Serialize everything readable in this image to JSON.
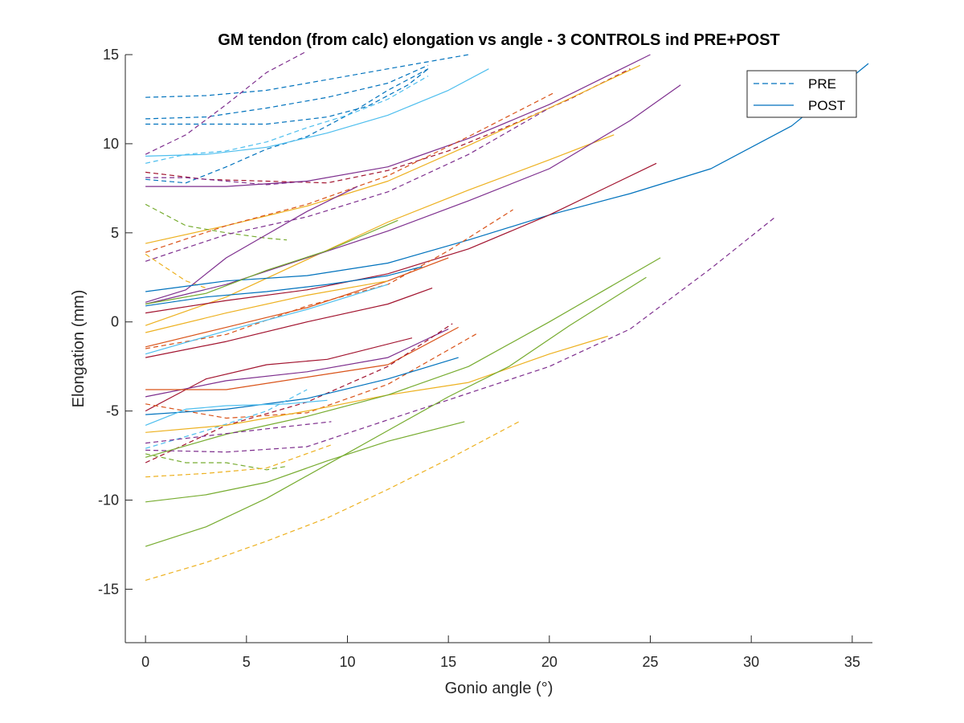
{
  "chart_data": {
    "type": "line",
    "title": "GM tendon (from calc) elongation vs angle - 3 CONTROLS ind PRE+POST",
    "xlabel": "Gonio angle (°)",
    "ylabel": "Elongation (mm)",
    "xlim": [
      -1,
      36
    ],
    "ylim": [
      -18,
      15
    ],
    "xticks": [
      0,
      5,
      10,
      15,
      20,
      25,
      30,
      35
    ],
    "yticks": [
      -15,
      -10,
      -5,
      0,
      5,
      10,
      15
    ],
    "grid": false,
    "legend": {
      "position": "top-right",
      "entries": [
        {
          "label": "PRE",
          "style": "dashed",
          "color": "#0072BD"
        },
        {
          "label": "POST",
          "style": "solid",
          "color": "#0072BD"
        }
      ]
    },
    "series": [
      {
        "color": "#0072BD",
        "style": "dashed",
        "x": [
          0,
          3,
          6,
          9,
          12,
          15,
          16
        ],
        "y": [
          12.6,
          12.7,
          13.0,
          13.6,
          14.2,
          14.8,
          15.0
        ]
      },
      {
        "color": "#0072BD",
        "style": "dashed",
        "x": [
          0,
          3,
          6,
          9,
          12,
          14
        ],
        "y": [
          11.4,
          11.5,
          12.0,
          12.6,
          13.4,
          14.4
        ]
      },
      {
        "color": "#0072BD",
        "style": "dashed",
        "x": [
          0,
          3,
          6,
          9,
          11,
          13,
          14
        ],
        "y": [
          11.1,
          11.1,
          11.1,
          11.5,
          12.1,
          13.3,
          14.2
        ]
      },
      {
        "color": "#0072BD",
        "style": "dashed",
        "x": [
          0,
          2,
          4,
          6,
          8,
          10,
          12,
          14
        ],
        "y": [
          8.0,
          7.8,
          8.7,
          9.7,
          10.4,
          11.6,
          13.0,
          14.2
        ]
      },
      {
        "color": "#4DBEEE",
        "style": "solid",
        "x": [
          0,
          3,
          6,
          9,
          12,
          15,
          17
        ],
        "y": [
          9.3,
          9.4,
          9.8,
          10.6,
          11.6,
          13.0,
          14.2
        ]
      },
      {
        "color": "#4DBEEE",
        "style": "dashed",
        "x": [
          0,
          2,
          4,
          6,
          8,
          10,
          12,
          14
        ],
        "y": [
          8.9,
          9.4,
          9.6,
          10.1,
          10.9,
          11.6,
          12.5,
          13.8
        ]
      },
      {
        "color": "#7E2F8E",
        "style": "dashed",
        "x": [
          0,
          2,
          4,
          6,
          8
        ],
        "y": [
          9.4,
          10.5,
          12.2,
          14.0,
          15.2
        ]
      },
      {
        "color": "#7E2F8E",
        "style": "solid",
        "x": [
          0,
          4,
          8,
          12,
          16,
          20,
          25
        ],
        "y": [
          7.6,
          7.6,
          7.9,
          8.7,
          10.3,
          12.2,
          15.0
        ]
      },
      {
        "color": "#A2142F",
        "style": "dashed",
        "x": [
          0,
          3,
          6,
          9,
          12,
          15,
          18,
          21,
          24
        ],
        "y": [
          8.4,
          8.0,
          7.9,
          7.8,
          8.5,
          9.6,
          11.0,
          12.5,
          14.2
        ]
      },
      {
        "color": "#7E2F8E",
        "style": "dashed",
        "x": [
          0,
          2,
          4,
          6,
          8
        ],
        "y": [
          8.1,
          8.1,
          7.9,
          7.7,
          7.9
        ]
      },
      {
        "color": "#EDB120",
        "style": "solid",
        "x": [
          0,
          4,
          8,
          12,
          16,
          20,
          24.5
        ],
        "y": [
          4.4,
          5.4,
          6.5,
          7.9,
          9.9,
          12.0,
          14.4
        ]
      },
      {
        "color": "#D95319",
        "style": "dashed",
        "x": [
          0,
          4,
          8,
          12,
          16,
          20.3
        ],
        "y": [
          3.9,
          5.4,
          6.6,
          8.2,
          10.4,
          12.9
        ]
      },
      {
        "color": "#77AC30",
        "style": "dashed",
        "x": [
          0,
          2,
          4,
          6,
          7
        ],
        "y": [
          6.6,
          5.4,
          5.0,
          4.7,
          4.6
        ]
      },
      {
        "color": "#EDB120",
        "style": "dashed",
        "x": [
          0,
          2,
          3
        ],
        "y": [
          3.8,
          2.3,
          1.9
        ]
      },
      {
        "color": "#7E2F8E",
        "style": "solid",
        "x": [
          0,
          2,
          4,
          6,
          8,
          10.5
        ],
        "y": [
          1.1,
          1.8,
          3.6,
          4.9,
          6.2,
          7.6
        ]
      },
      {
        "color": "#7E2F8E",
        "style": "dashed",
        "x": [
          0,
          4,
          8,
          12,
          16,
          20
        ],
        "y": [
          3.4,
          4.9,
          5.9,
          7.3,
          9.4,
          12.0
        ]
      },
      {
        "color": "#EDB120",
        "style": "solid",
        "x": [
          0,
          4,
          8,
          12,
          16,
          20,
          23.2
        ],
        "y": [
          -0.2,
          1.4,
          3.5,
          5.6,
          7.4,
          9.1,
          10.5
        ]
      },
      {
        "color": "#7E2F8E",
        "style": "solid",
        "x": [
          0,
          4,
          8,
          12,
          16,
          20,
          24,
          26.5
        ],
        "y": [
          1.0,
          2.1,
          3.6,
          5.1,
          6.8,
          8.6,
          11.3,
          13.3
        ]
      },
      {
        "color": "#0072BD",
        "style": "solid",
        "x": [
          0,
          4,
          8,
          12,
          16,
          20,
          24,
          28,
          32,
          35.8
        ],
        "y": [
          1.7,
          2.3,
          2.6,
          3.3,
          4.6,
          6.0,
          7.2,
          8.6,
          11.0,
          14.5
        ]
      },
      {
        "color": "#A2142F",
        "style": "solid",
        "x": [
          0,
          4,
          8,
          12,
          16,
          20,
          25.3
        ],
        "y": [
          0.5,
          1.2,
          1.8,
          2.7,
          4.1,
          6.0,
          8.9
        ]
      },
      {
        "color": "#77AC30",
        "style": "solid",
        "x": [
          0,
          3,
          6,
          9,
          12.5
        ],
        "y": [
          1.0,
          1.6,
          2.9,
          4.0,
          5.7
        ]
      },
      {
        "color": "#D95319",
        "style": "dashed",
        "x": [
          0,
          4,
          8,
          12,
          15,
          18.2
        ],
        "y": [
          -1.5,
          -0.7,
          0.9,
          2.1,
          4.0,
          6.3
        ]
      },
      {
        "color": "#A2142F",
        "style": "solid",
        "x": [
          0,
          4,
          8,
          12,
          14.2
        ],
        "y": [
          -2.0,
          -1.1,
          0.0,
          1.0,
          1.9
        ]
      },
      {
        "color": "#4DBEEE",
        "style": "solid",
        "x": [
          0,
          4,
          8,
          12
        ],
        "y": [
          -1.8,
          -0.5,
          0.7,
          2.1
        ]
      },
      {
        "color": "#D95319",
        "style": "solid",
        "x": [
          0,
          4,
          8,
          12,
          15
        ],
        "y": [
          -1.4,
          -0.3,
          0.8,
          2.3,
          3.6
        ]
      },
      {
        "color": "#0072BD",
        "style": "solid",
        "x": [
          0,
          3,
          6,
          9,
          12,
          13.7
        ],
        "y": [
          0.9,
          1.4,
          1.7,
          2.1,
          2.6,
          3.1
        ]
      },
      {
        "color": "#EDB120",
        "style": "solid",
        "x": [
          0,
          4,
          8,
          12
        ],
        "y": [
          -0.6,
          0.5,
          1.5,
          2.3
        ]
      },
      {
        "color": "#A2142F",
        "style": "solid",
        "x": [
          0,
          3,
          6,
          9,
          13.2
        ],
        "y": [
          -5.0,
          -3.2,
          -2.4,
          -2.1,
          -0.9
        ]
      },
      {
        "color": "#7E2F8E",
        "style": "solid",
        "x": [
          0,
          4,
          8,
          12,
          15
        ],
        "y": [
          -4.2,
          -3.3,
          -2.8,
          -2.0,
          -0.4
        ]
      },
      {
        "color": "#D95319",
        "style": "solid",
        "x": [
          0,
          4,
          8,
          12,
          15.5
        ],
        "y": [
          -3.8,
          -3.8,
          -3.1,
          -2.4,
          -0.3
        ]
      },
      {
        "color": "#A2142F",
        "style": "dashed",
        "x": [
          0,
          4,
          8,
          12,
          15.2
        ],
        "y": [
          -7.9,
          -5.8,
          -4.5,
          -2.5,
          -0.1
        ]
      },
      {
        "color": "#D95319",
        "style": "dashed",
        "x": [
          0,
          4,
          8,
          12,
          16.5
        ],
        "y": [
          -4.6,
          -5.4,
          -5.1,
          -3.5,
          -0.6
        ]
      },
      {
        "color": "#0072BD",
        "style": "solid",
        "x": [
          0,
          4,
          8,
          12,
          15.5
        ],
        "y": [
          -5.2,
          -4.9,
          -4.3,
          -3.2,
          -2.0
        ]
      },
      {
        "color": "#4DBEEE",
        "style": "solid",
        "x": [
          0,
          2,
          4,
          7,
          9
        ],
        "y": [
          -5.8,
          -4.9,
          -4.7,
          -4.6,
          -4.4
        ]
      },
      {
        "color": "#4DBEEE",
        "style": "dashed",
        "x": [
          0,
          3,
          6,
          8
        ],
        "y": [
          -7.1,
          -6.1,
          -5.0,
          -3.8
        ]
      },
      {
        "color": "#EDB120",
        "style": "solid",
        "x": [
          0,
          4,
          8,
          12,
          16,
          20,
          22.9
        ],
        "y": [
          -6.2,
          -5.8,
          -5.0,
          -4.1,
          -3.4,
          -1.8,
          -0.8
        ]
      },
      {
        "color": "#7E2F8E",
        "style": "dashed",
        "x": [
          0,
          4,
          8,
          12,
          16,
          20,
          24,
          28,
          31.2
        ],
        "y": [
          -7.2,
          -7.3,
          -7.0,
          -5.5,
          -4.0,
          -2.5,
          -0.4,
          3.0,
          5.9
        ]
      },
      {
        "color": "#77AC30",
        "style": "solid",
        "x": [
          0,
          4,
          8,
          12,
          16,
          20,
          25.5
        ],
        "y": [
          -7.6,
          -6.3,
          -5.3,
          -4.1,
          -2.5,
          0.0,
          3.6
        ]
      },
      {
        "color": "#77AC30",
        "style": "dashed",
        "x": [
          0,
          2,
          4,
          6,
          7
        ],
        "y": [
          -7.4,
          -7.9,
          -7.9,
          -8.3,
          -8.1
        ]
      },
      {
        "color": "#7E2F8E",
        "style": "dashed",
        "x": [
          0,
          3,
          6,
          9.2
        ],
        "y": [
          -6.8,
          -6.4,
          -6.0,
          -5.6
        ]
      },
      {
        "color": "#EDB120",
        "style": "dashed",
        "x": [
          0,
          3,
          6,
          9.2
        ],
        "y": [
          -8.7,
          -8.5,
          -8.2,
          -6.9
        ]
      },
      {
        "color": "#77AC30",
        "style": "solid",
        "x": [
          0,
          3,
          6,
          9,
          12,
          15.8
        ],
        "y": [
          -10.1,
          -9.7,
          -9.0,
          -7.8,
          -6.7,
          -5.6
        ]
      },
      {
        "color": "#77AC30",
        "style": "solid",
        "x": [
          0,
          3,
          6,
          9,
          12,
          15,
          18,
          21,
          24.8
        ],
        "y": [
          -12.6,
          -11.5,
          -9.9,
          -8.0,
          -6.1,
          -4.2,
          -2.5,
          -0.2,
          2.5
        ]
      },
      {
        "color": "#EDB120",
        "style": "dashed",
        "x": [
          0,
          3,
          6,
          9,
          12,
          15,
          18.5
        ],
        "y": [
          -14.5,
          -13.5,
          -12.3,
          -11.0,
          -9.4,
          -7.7,
          -5.6
        ]
      }
    ]
  }
}
